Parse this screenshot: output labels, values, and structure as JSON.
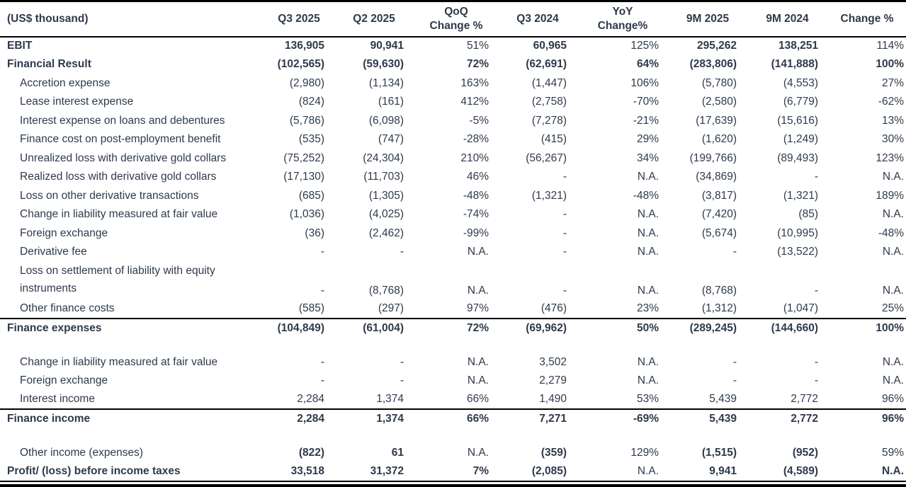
{
  "colors": {
    "text": "#2e3a4c",
    "border": "#000000",
    "background": "#ffffff"
  },
  "table": {
    "unit_label": "(US$ thousand)",
    "columns": [
      "Q3 2025",
      "Q2 2025",
      "QoQ\nChange %",
      "Q3 2024",
      "YoY\nChange%",
      "9M 2025",
      "9M 2024",
      "Change %"
    ],
    "rows": [
      {
        "label": "EBIT",
        "level": 0,
        "label_bold": true,
        "values": [
          "136,905",
          "90,941",
          "51%",
          "60,965",
          "125%",
          "295,262",
          "138,251",
          "114%"
        ],
        "bold": [
          true,
          true,
          false,
          true,
          false,
          true,
          true,
          false
        ]
      },
      {
        "label": "Financial Result",
        "level": 0,
        "label_bold": true,
        "values": [
          "(102,565)",
          "(59,630)",
          "72%",
          "(62,691)",
          "64%",
          "(283,806)",
          "(141,888)",
          "100%"
        ],
        "bold_all": true
      },
      {
        "label": "Accretion expense",
        "level": 1,
        "values": [
          "(2,980)",
          "(1,134)",
          "163%",
          "(1,447)",
          "106%",
          "(5,780)",
          "(4,553)",
          "27%"
        ]
      },
      {
        "label": "Lease interest expense",
        "level": 1,
        "values": [
          "(824)",
          "(161)",
          "412%",
          "(2,758)",
          "-70%",
          "(2,580)",
          "(6,779)",
          "-62%"
        ]
      },
      {
        "label": "Interest expense on loans and debentures",
        "level": 1,
        "values": [
          "(5,786)",
          "(6,098)",
          "-5%",
          "(7,278)",
          "-21%",
          "(17,639)",
          "(15,616)",
          "13%"
        ]
      },
      {
        "label": "Finance cost on post-employment benefit",
        "level": 1,
        "values": [
          "(535)",
          "(747)",
          "-28%",
          "(415)",
          "29%",
          "(1,620)",
          "(1,249)",
          "30%"
        ]
      },
      {
        "label": "Unrealized loss with derivative gold collars",
        "level": 1,
        "values": [
          "(75,252)",
          "(24,304)",
          "210%",
          "(56,267)",
          "34%",
          "(199,766)",
          "(89,493)",
          "123%"
        ]
      },
      {
        "label": "Realized loss with derivative gold collars",
        "level": 1,
        "values": [
          "(17,130)",
          "(11,703)",
          "46%",
          "-",
          "N.A.",
          "(34,869)",
          "-",
          "N.A."
        ]
      },
      {
        "label": "Loss on other derivative transactions",
        "level": 1,
        "values": [
          "(685)",
          "(1,305)",
          "-48%",
          "(1,321)",
          "-48%",
          "(3,817)",
          "(1,321)",
          "189%"
        ]
      },
      {
        "label": "Change in liability measured at fair value",
        "level": 1,
        "values": [
          "(1,036)",
          "(4,025)",
          "-74%",
          "-",
          "N.A.",
          "(7,420)",
          "(85)",
          "N.A."
        ]
      },
      {
        "label": "Foreign exchange",
        "level": 1,
        "values": [
          "(36)",
          "(2,462)",
          "-99%",
          "-",
          "N.A.",
          "(5,674)",
          "(10,995)",
          "-48%"
        ]
      },
      {
        "label": "Derivative fee",
        "level": 1,
        "values": [
          "-",
          "-",
          "N.A.",
          "-",
          "N.A.",
          "-",
          "(13,522)",
          "N.A."
        ]
      },
      {
        "label": "Loss on settlement of liability with equity instruments",
        "level": 1,
        "wrap": true,
        "values": [
          "-",
          "(8,768)",
          "N.A.",
          "-",
          "N.A.",
          "(8,768)",
          "-",
          "N.A."
        ]
      },
      {
        "label": "Other finance costs",
        "level": 1,
        "values": [
          "(585)",
          "(297)",
          "97%",
          "(476)",
          "23%",
          "(1,312)",
          "(1,047)",
          "25%"
        ]
      },
      {
        "label": "Finance expenses",
        "level": 0,
        "label_bold": true,
        "border_top": true,
        "values": [
          "(104,849)",
          "(61,004)",
          "72%",
          "(69,962)",
          "50%",
          "(289,245)",
          "(144,660)",
          "100%"
        ],
        "bold_all": true
      },
      {
        "type": "spacer"
      },
      {
        "label": "Change in liability measured at fair value",
        "level": 1,
        "values": [
          "-",
          "-",
          "N.A.",
          "3,502",
          "N.A.",
          "-",
          "-",
          "N.A."
        ]
      },
      {
        "label": "Foreign exchange",
        "level": 1,
        "values": [
          "-",
          "-",
          "N.A.",
          "2,279",
          "N.A.",
          "-",
          "-",
          "N.A."
        ]
      },
      {
        "label": "Interest income",
        "level": 1,
        "values": [
          "2,284",
          "1,374",
          "66%",
          "1,490",
          "53%",
          "5,439",
          "2,772",
          "96%"
        ]
      },
      {
        "label": "Finance income",
        "level": 0,
        "label_bold": true,
        "border_top": true,
        "values": [
          "2,284",
          "1,374",
          "66%",
          "7,271",
          "-69%",
          "5,439",
          "2,772",
          "96%"
        ],
        "bold_all": true
      },
      {
        "type": "spacer"
      },
      {
        "label": "Other income (expenses)",
        "level": 1,
        "values": [
          "(822)",
          "61",
          "N.A.",
          "(359)",
          "129%",
          "(1,515)",
          "(952)",
          "59%"
        ],
        "bold": [
          true,
          true,
          false,
          true,
          false,
          true,
          true,
          false
        ]
      },
      {
        "label": "Profit/ (loss) before income taxes",
        "level": 0,
        "label_bold": true,
        "last_row": true,
        "values": [
          "33,518",
          "31,372",
          "7%",
          "(2,085)",
          "N.A.",
          "9,941",
          "(4,589)",
          "N.A."
        ],
        "bold": [
          true,
          true,
          true,
          true,
          false,
          true,
          true,
          true
        ]
      }
    ]
  }
}
